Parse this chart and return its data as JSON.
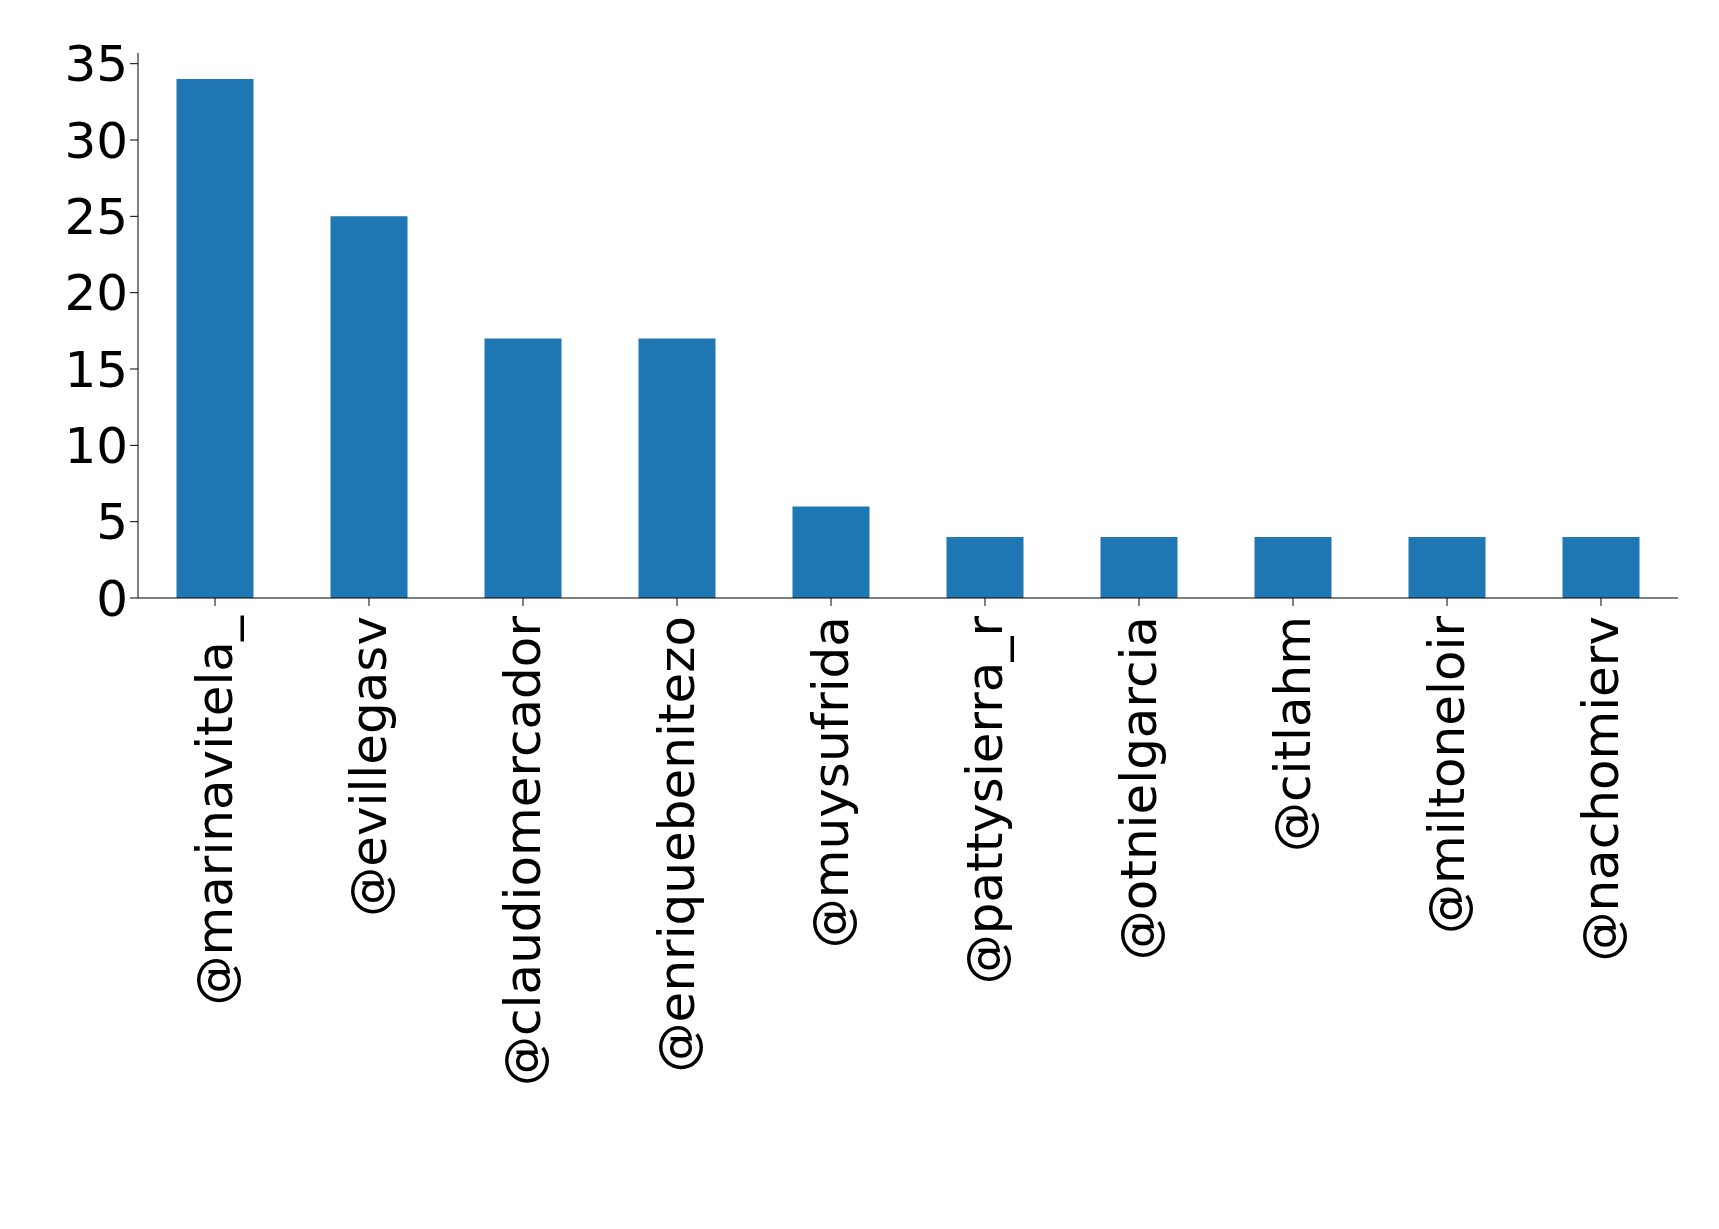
{
  "chart_data": {
    "type": "bar",
    "categories": [
      "@marinavitela_",
      "@evillegasv",
      "@claudiomercador",
      "@enriquebenitezo",
      "@muysufrida",
      "@pattysierra_r",
      "@otnielgarcia",
      "@citlahm",
      "@miltoneloir",
      "@nachomierv"
    ],
    "values": [
      34,
      25,
      17,
      17,
      6,
      4,
      4,
      4,
      4,
      4
    ],
    "color": "#1f77b4",
    "ylim": [
      0,
      35.7
    ],
    "yticks": [
      0,
      5,
      10,
      15,
      20,
      25,
      30,
      35
    ],
    "grid": false,
    "legend": false
  }
}
